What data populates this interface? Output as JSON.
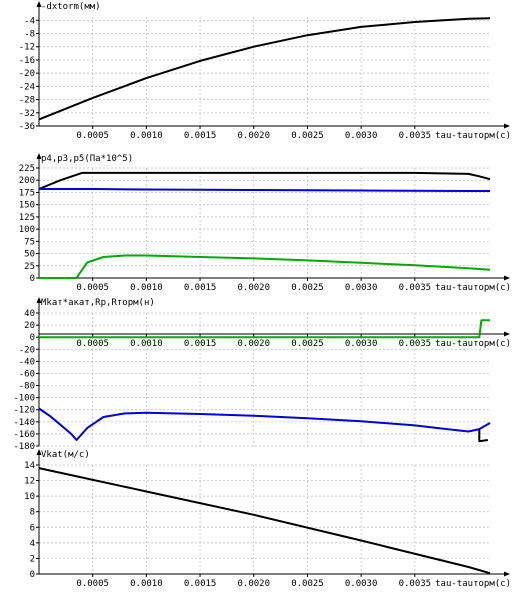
{
  "chart_data": [
    {
      "type": "line",
      "title": "-dxtorm(мм)",
      "xlabel": "tau-tauторм(с)",
      "xlim": [
        0,
        0.0042
      ],
      "ylim": [
        -36,
        -3
      ],
      "yticks": [
        -4,
        -8,
        -12,
        -16,
        -20,
        -24,
        -28,
        -32,
        -36
      ],
      "xticks": [
        0.0005,
        0.001,
        0.0015,
        0.002,
        0.0025,
        0.003,
        0.0035
      ],
      "xtick_labels": [
        "0.0005",
        "0.0010",
        "0.0015",
        "0.0020",
        "0.0025",
        "0.0030",
        "0.0035"
      ],
      "grid": true,
      "series": [
        {
          "color": "#000000",
          "x": [
            0,
            0.0005,
            0.001,
            0.0015,
            0.002,
            0.0025,
            0.003,
            0.0035,
            0.004,
            0.0042
          ],
          "y": [
            -34,
            -27.5,
            -21.5,
            -16.3,
            -12,
            -8.5,
            -6,
            -4.5,
            -3.5,
            -3.4
          ]
        }
      ]
    },
    {
      "type": "line",
      "title": "p4,p3,p5(Па*10^5)",
      "xlabel": "tau-tauторм(с)",
      "xlim": [
        0,
        0.0042
      ],
      "ylim": [
        0,
        225
      ],
      "yticks": [
        225,
        200,
        175,
        150,
        125,
        100,
        75,
        50,
        25,
        0
      ],
      "xticks": [
        0.0005,
        0.001,
        0.0015,
        0.002,
        0.0025,
        0.003,
        0.0035
      ],
      "xtick_labels": [
        "0.0005",
        "0.0010",
        "0.0015",
        "0.0020",
        "0.0025",
        "0.0030",
        "0.0035"
      ],
      "grid": true,
      "series": [
        {
          "color": "#000000",
          "x": [
            0,
            0.0002,
            0.0004,
            0.0005,
            0.002,
            0.0035,
            0.004,
            0.0041,
            0.0042
          ],
          "y": [
            182,
            200,
            215,
            215,
            215,
            215,
            213,
            208,
            202
          ]
        },
        {
          "color": "#0000dd",
          "x": [
            0,
            0.0005,
            0.001,
            0.002,
            0.003,
            0.004,
            0.0042
          ],
          "y": [
            182,
            182,
            181,
            180,
            179,
            178,
            178
          ]
        },
        {
          "color": "#00aa00",
          "x": [
            0,
            0.00035,
            0.00038,
            0.00045,
            0.0006,
            0.0008,
            0.001,
            0.0015,
            0.002,
            0.0025,
            0.003,
            0.0035,
            0.004,
            0.0042
          ],
          "y": [
            0,
            0,
            10,
            32,
            43,
            46,
            46,
            43,
            40,
            36,
            31,
            26,
            20,
            17
          ]
        }
      ]
    },
    {
      "type": "line",
      "title": "Mkат*aкат,Rp,Rторм(н)",
      "xlabel": "tau-tauторм(с)",
      "xlim": [
        0,
        0.0042
      ],
      "ylim": [
        -180,
        40
      ],
      "yticks": [
        40,
        20,
        0,
        -20,
        -40,
        -60,
        -80,
        -100,
        -120,
        -140,
        -160,
        -180
      ],
      "xticks": [
        0.0005,
        0.001,
        0.0015,
        0.002,
        0.0025,
        0.003,
        0.0035
      ],
      "xtick_labels": [
        "0.0005",
        "0.0010",
        "0.0015",
        "0.0020",
        "0.0025",
        "0.0030",
        "0.0035"
      ],
      "grid": true,
      "series": [
        {
          "color": "#00aa00",
          "x": [
            0,
            0.0041,
            0.00412,
            0.0042
          ],
          "y": [
            0,
            0,
            28,
            28
          ]
        },
        {
          "color": "#0000dd",
          "x": [
            0,
            0.0001,
            0.0002,
            0.0003,
            0.00035,
            0.00045,
            0.0006,
            0.0008,
            0.001,
            0.0015,
            0.002,
            0.0025,
            0.003,
            0.0035,
            0.0038,
            0.004,
            0.0041,
            0.0042
          ],
          "y": [
            -118,
            -130,
            -145,
            -160,
            -170,
            -150,
            -132,
            -126,
            -125,
            -127,
            -130,
            -134,
            -139,
            -146,
            -152,
            -156,
            -152,
            -142
          ]
        },
        {
          "color": "#000000",
          "x": [
            0.0041,
            0.0041,
            0.00418
          ],
          "y": [
            -152,
            -172,
            -170
          ]
        }
      ]
    },
    {
      "type": "line",
      "title": "Vkat(м/с)",
      "xlabel": "tau-tauторм(с)",
      "xlim": [
        0,
        0.0042
      ],
      "ylim": [
        0,
        14
      ],
      "yticks": [
        14,
        12,
        10,
        8,
        6,
        4,
        2,
        0
      ],
      "xticks": [
        0.0005,
        0.001,
        0.0015,
        0.002,
        0.0025,
        0.003,
        0.0035
      ],
      "xtick_labels": [
        "0.0005",
        "0.0010",
        "0.0015",
        "0.0020",
        "0.0025",
        "0.0030",
        "0.0035"
      ],
      "grid": true,
      "series": [
        {
          "color": "#000000",
          "x": [
            0,
            0.001,
            0.002,
            0.003,
            0.004,
            0.0042
          ],
          "y": [
            13.6,
            10.6,
            7.6,
            4.3,
            0.9,
            0.1
          ]
        }
      ]
    }
  ]
}
